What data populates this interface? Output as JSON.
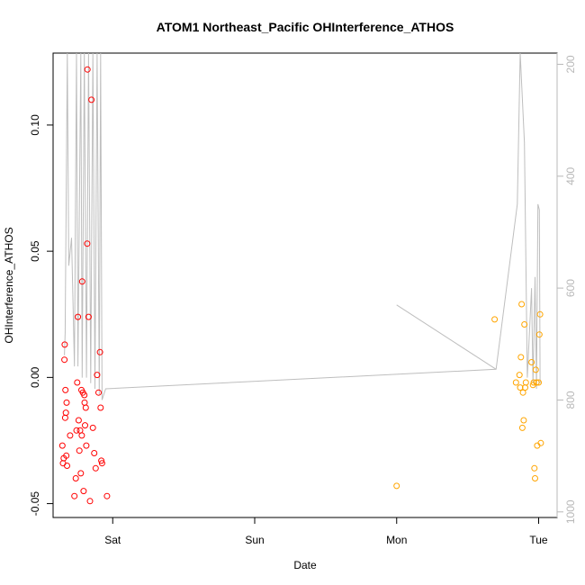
{
  "chart_data": {
    "type": "scatter",
    "title": "ATOM1 Northeast_Pacific OHInterference_ATHOS",
    "xlabel": "Date",
    "ylabel": "OHInterference_ATHOS",
    "x_ticks": [
      "Sat",
      "Sun",
      "Mon",
      "Tue"
    ],
    "xlim": [
      -0.42,
      3.13
    ],
    "ylim": [
      -0.0555,
      0.1285
    ],
    "y_ticks": [
      -0.05,
      0.0,
      0.05,
      0.1
    ],
    "y_tick_labels": [
      "-0.05",
      "0.00",
      "0.05",
      "0.10"
    ],
    "y2_ticks": [
      200,
      400,
      600,
      800,
      1000
    ],
    "y2_tick_labels": [
      "200",
      "400",
      "600",
      "800",
      "1000"
    ],
    "y2lim": [
      1010,
      180
    ],
    "grid": false,
    "colors": {
      "series_red": "#ff0000",
      "series_orange": "#ffa500",
      "profile_line": "#bebebe",
      "right_axis": "#b8b8b8"
    },
    "series": [
      {
        "color": "#ff0000",
        "points": [
          [
            -0.355,
            -0.027
          ],
          [
            -0.35,
            -0.034
          ],
          [
            -0.345,
            -0.032
          ],
          [
            -0.34,
            0.007
          ],
          [
            -0.338,
            0.013
          ],
          [
            -0.335,
            -0.016
          ],
          [
            -0.333,
            -0.005
          ],
          [
            -0.33,
            -0.014
          ],
          [
            -0.327,
            -0.031
          ],
          [
            -0.325,
            -0.01
          ],
          [
            -0.322,
            -0.035
          ],
          [
            -0.3,
            -0.023
          ],
          [
            -0.27,
            -0.047
          ],
          [
            -0.26,
            -0.04
          ],
          [
            -0.255,
            -0.021
          ],
          [
            -0.25,
            -0.002
          ],
          [
            -0.245,
            0.024
          ],
          [
            -0.24,
            -0.017
          ],
          [
            -0.235,
            -0.029
          ],
          [
            -0.23,
            -0.021
          ],
          [
            -0.225,
            -0.038
          ],
          [
            -0.22,
            -0.005
          ],
          [
            -0.218,
            -0.023
          ],
          [
            -0.215,
            0.038
          ],
          [
            -0.21,
            -0.006
          ],
          [
            -0.205,
            -0.045
          ],
          [
            -0.2,
            -0.007
          ],
          [
            -0.198,
            -0.01
          ],
          [
            -0.195,
            -0.019
          ],
          [
            -0.19,
            -0.012
          ],
          [
            -0.186,
            -0.027
          ],
          [
            -0.18,
            0.053
          ],
          [
            -0.178,
            0.122
          ],
          [
            -0.17,
            0.024
          ],
          [
            -0.16,
            -0.049
          ],
          [
            -0.15,
            0.11
          ],
          [
            -0.14,
            -0.02
          ],
          [
            -0.13,
            -0.03
          ],
          [
            -0.12,
            -0.036
          ],
          [
            -0.11,
            0.001
          ],
          [
            -0.1,
            -0.006
          ],
          [
            -0.09,
            0.01
          ],
          [
            -0.085,
            -0.012
          ],
          [
            -0.08,
            -0.033
          ],
          [
            -0.075,
            -0.034
          ],
          [
            -0.04,
            -0.047
          ]
        ]
      },
      {
        "color": "#ffa500",
        "points": [
          [
            2.0,
            -0.043
          ],
          [
            2.69,
            0.023
          ],
          [
            2.84,
            -0.002
          ],
          [
            2.865,
            0.001
          ],
          [
            2.87,
            -0.004
          ],
          [
            2.875,
            0.008
          ],
          [
            2.88,
            0.029
          ],
          [
            2.885,
            -0.02
          ],
          [
            2.89,
            -0.006
          ],
          [
            2.895,
            -0.017
          ],
          [
            2.9,
            0.021
          ],
          [
            2.905,
            -0.004
          ],
          [
            2.91,
            -0.002
          ],
          [
            2.95,
            0.006
          ],
          [
            2.96,
            -0.003
          ],
          [
            2.965,
            -0.002
          ],
          [
            2.97,
            -0.036
          ],
          [
            2.975,
            -0.04
          ],
          [
            2.98,
            0.003
          ],
          [
            2.985,
            -0.002
          ],
          [
            2.99,
            -0.027
          ],
          [
            3.0,
            -0.002
          ],
          [
            3.005,
            0.017
          ],
          [
            3.01,
            0.025
          ],
          [
            3.015,
            -0.026
          ]
        ]
      }
    ],
    "profile_line_y2": [
      [
        -0.34,
        720
      ],
      [
        -0.335,
        680
      ],
      [
        -0.32,
        100
      ],
      [
        -0.31,
        560
      ],
      [
        -0.29,
        510
      ],
      [
        -0.27,
        740
      ],
      [
        -0.255,
        100
      ],
      [
        -0.245,
        740
      ],
      [
        -0.225,
        100
      ],
      [
        -0.215,
        760
      ],
      [
        -0.2,
        100
      ],
      [
        -0.185,
        760
      ],
      [
        -0.17,
        100
      ],
      [
        -0.155,
        770
      ],
      [
        -0.14,
        100
      ],
      [
        -0.125,
        780
      ],
      [
        -0.11,
        100
      ],
      [
        -0.095,
        790
      ],
      [
        -0.085,
        100
      ],
      [
        -0.075,
        800
      ],
      [
        -0.05,
        780
      ],
      [
        2.7,
        745
      ],
      [
        2.85,
        450
      ],
      [
        2.87,
        100
      ],
      [
        2.9,
        340
      ],
      [
        2.92,
        760
      ],
      [
        2.95,
        600
      ],
      [
        2.96,
        770
      ],
      [
        2.975,
        580
      ],
      [
        2.985,
        780
      ],
      [
        2.995,
        450
      ],
      [
        3.005,
        460
      ],
      [
        3.01,
        770
      ]
    ],
    "profile_line2_y2": [
      [
        2.0,
        630
      ],
      [
        2.7,
        745
      ]
    ]
  }
}
